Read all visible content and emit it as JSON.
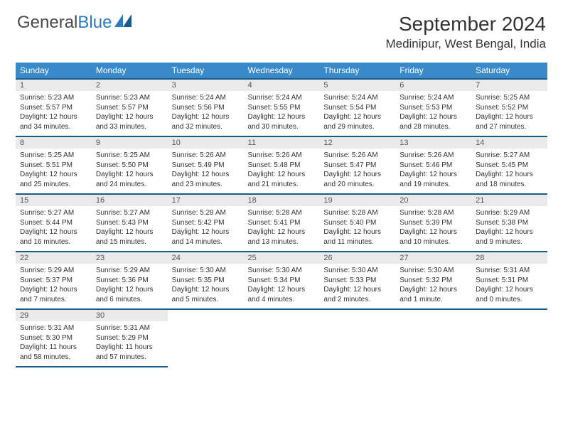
{
  "logo": {
    "text_gray": "General",
    "text_blue": "Blue"
  },
  "title": "September 2024",
  "location": "Medinipur, West Bengal, India",
  "colors": {
    "header_bg": "#3a8ac9",
    "header_border": "#1a5a8a",
    "daynum_bg": "#eaeaea",
    "text": "#333333",
    "logo_gray": "#4a4a4a",
    "logo_blue": "#2b7bbf"
  },
  "weekdays": [
    "Sunday",
    "Monday",
    "Tuesday",
    "Wednesday",
    "Thursday",
    "Friday",
    "Saturday"
  ],
  "days": [
    {
      "n": "1",
      "sr": "5:23 AM",
      "ss": "5:57 PM",
      "dl": "12 hours and 34 minutes."
    },
    {
      "n": "2",
      "sr": "5:23 AM",
      "ss": "5:57 PM",
      "dl": "12 hours and 33 minutes."
    },
    {
      "n": "3",
      "sr": "5:24 AM",
      "ss": "5:56 PM",
      "dl": "12 hours and 32 minutes."
    },
    {
      "n": "4",
      "sr": "5:24 AM",
      "ss": "5:55 PM",
      "dl": "12 hours and 30 minutes."
    },
    {
      "n": "5",
      "sr": "5:24 AM",
      "ss": "5:54 PM",
      "dl": "12 hours and 29 minutes."
    },
    {
      "n": "6",
      "sr": "5:24 AM",
      "ss": "5:53 PM",
      "dl": "12 hours and 28 minutes."
    },
    {
      "n": "7",
      "sr": "5:25 AM",
      "ss": "5:52 PM",
      "dl": "12 hours and 27 minutes."
    },
    {
      "n": "8",
      "sr": "5:25 AM",
      "ss": "5:51 PM",
      "dl": "12 hours and 25 minutes."
    },
    {
      "n": "9",
      "sr": "5:25 AM",
      "ss": "5:50 PM",
      "dl": "12 hours and 24 minutes."
    },
    {
      "n": "10",
      "sr": "5:26 AM",
      "ss": "5:49 PM",
      "dl": "12 hours and 23 minutes."
    },
    {
      "n": "11",
      "sr": "5:26 AM",
      "ss": "5:48 PM",
      "dl": "12 hours and 21 minutes."
    },
    {
      "n": "12",
      "sr": "5:26 AM",
      "ss": "5:47 PM",
      "dl": "12 hours and 20 minutes."
    },
    {
      "n": "13",
      "sr": "5:26 AM",
      "ss": "5:46 PM",
      "dl": "12 hours and 19 minutes."
    },
    {
      "n": "14",
      "sr": "5:27 AM",
      "ss": "5:45 PM",
      "dl": "12 hours and 18 minutes."
    },
    {
      "n": "15",
      "sr": "5:27 AM",
      "ss": "5:44 PM",
      "dl": "12 hours and 16 minutes."
    },
    {
      "n": "16",
      "sr": "5:27 AM",
      "ss": "5:43 PM",
      "dl": "12 hours and 15 minutes."
    },
    {
      "n": "17",
      "sr": "5:28 AM",
      "ss": "5:42 PM",
      "dl": "12 hours and 14 minutes."
    },
    {
      "n": "18",
      "sr": "5:28 AM",
      "ss": "5:41 PM",
      "dl": "12 hours and 13 minutes."
    },
    {
      "n": "19",
      "sr": "5:28 AM",
      "ss": "5:40 PM",
      "dl": "12 hours and 11 minutes."
    },
    {
      "n": "20",
      "sr": "5:28 AM",
      "ss": "5:39 PM",
      "dl": "12 hours and 10 minutes."
    },
    {
      "n": "21",
      "sr": "5:29 AM",
      "ss": "5:38 PM",
      "dl": "12 hours and 9 minutes."
    },
    {
      "n": "22",
      "sr": "5:29 AM",
      "ss": "5:37 PM",
      "dl": "12 hours and 7 minutes."
    },
    {
      "n": "23",
      "sr": "5:29 AM",
      "ss": "5:36 PM",
      "dl": "12 hours and 6 minutes."
    },
    {
      "n": "24",
      "sr": "5:30 AM",
      "ss": "5:35 PM",
      "dl": "12 hours and 5 minutes."
    },
    {
      "n": "25",
      "sr": "5:30 AM",
      "ss": "5:34 PM",
      "dl": "12 hours and 4 minutes."
    },
    {
      "n": "26",
      "sr": "5:30 AM",
      "ss": "5:33 PM",
      "dl": "12 hours and 2 minutes."
    },
    {
      "n": "27",
      "sr": "5:30 AM",
      "ss": "5:32 PM",
      "dl": "12 hours and 1 minute."
    },
    {
      "n": "28",
      "sr": "5:31 AM",
      "ss": "5:31 PM",
      "dl": "12 hours and 0 minutes."
    },
    {
      "n": "29",
      "sr": "5:31 AM",
      "ss": "5:30 PM",
      "dl": "11 hours and 58 minutes."
    },
    {
      "n": "30",
      "sr": "5:31 AM",
      "ss": "5:29 PM",
      "dl": "11 hours and 57 minutes."
    }
  ],
  "labels": {
    "sunrise": "Sunrise:",
    "sunset": "Sunset:",
    "daylight": "Daylight:"
  }
}
